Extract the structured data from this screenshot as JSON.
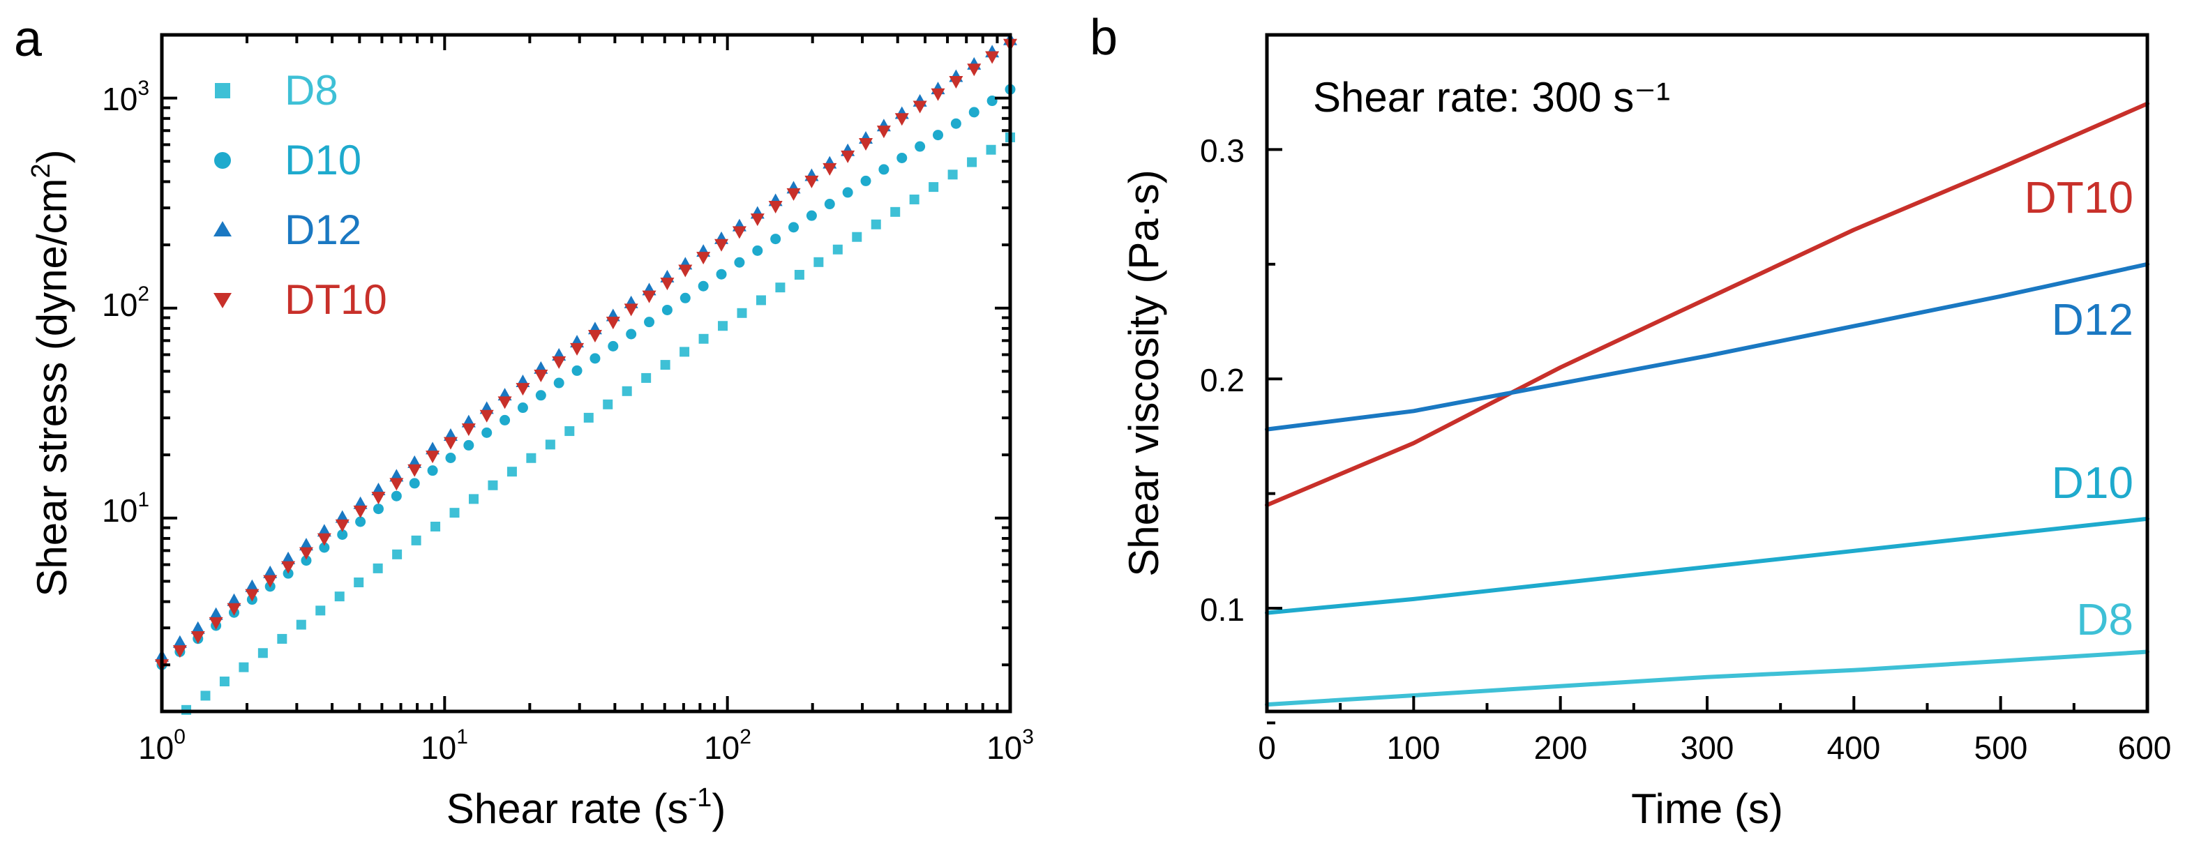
{
  "colors": {
    "D8": "#3ec0d6",
    "D10": "#1eaacd",
    "D12": "#1a78c2",
    "DT10": "#c8302a",
    "axis": "#000000"
  },
  "chart_data": [
    {
      "panel_label": "a",
      "type": "scatter",
      "xscale": "log",
      "yscale": "log",
      "xlabel": "Shear rate (s-1)",
      "ylabel": "Shear stress (dyne/cm2)",
      "xlim": [
        1,
        1000
      ],
      "ylim": [
        1.2,
        2000
      ],
      "x_ticks": [
        "10^0",
        "10^1",
        "10^2",
        "10^3"
      ],
      "y_ticks": [
        "10^1",
        "10^2",
        "10^3"
      ],
      "legend_position": "top-left",
      "grid": false,
      "series": [
        {
          "name": "D8",
          "marker": "square",
          "color_key": "D8",
          "x_range": [
            1.22,
            1000
          ],
          "y_at_start": 1.22,
          "y_at_end": 650,
          "points": 44
        },
        {
          "name": "D10",
          "marker": "circle",
          "color_key": "D10",
          "x_range": [
            1.0,
            1000
          ],
          "y_at_start": 2.0,
          "y_at_end": 1100,
          "points": 48
        },
        {
          "name": "D12",
          "marker": "triangle-up",
          "color_key": "D12",
          "x_range": [
            1.0,
            1000
          ],
          "y_at_start": 2.2,
          "y_at_end": 1900,
          "points": 48
        },
        {
          "name": "DT10",
          "marker": "triangle-down",
          "color_key": "DT10",
          "x_range": [
            1.0,
            1000
          ],
          "y_at_start": 2.0,
          "y_at_end": 1800,
          "points": 48
        }
      ]
    },
    {
      "panel_label": "b",
      "type": "line",
      "xlabel": "Time (s)",
      "ylabel": "Shear viscosity (Pa·s)",
      "xlim": [
        0,
        600
      ],
      "ylim": [
        0.055,
        0.35
      ],
      "x_ticks": [
        0,
        100,
        200,
        300,
        400,
        500,
        600
      ],
      "y_ticks": [
        "0.1",
        "0.2",
        "0.3"
      ],
      "annotation": "Shear rate: 300 s⁻¹",
      "grid": false,
      "series": [
        {
          "name": "DT10",
          "color_key": "DT10",
          "label": "DT10",
          "x": [
            0,
            100,
            200,
            300,
            400,
            500,
            600
          ],
          "y": [
            0.145,
            0.172,
            0.205,
            0.235,
            0.265,
            0.292,
            0.32
          ]
        },
        {
          "name": "D12",
          "color_key": "D12",
          "label": "D12",
          "x": [
            0,
            100,
            200,
            300,
            400,
            500,
            600
          ],
          "y": [
            0.178,
            0.186,
            0.198,
            0.21,
            0.223,
            0.236,
            0.25
          ]
        },
        {
          "name": "D10",
          "color_key": "D10",
          "label": "D10",
          "x": [
            0,
            100,
            200,
            300,
            400,
            500,
            600
          ],
          "y": [
            0.098,
            0.104,
            0.111,
            0.118,
            0.125,
            0.132,
            0.139
          ]
        },
        {
          "name": "D8",
          "color_key": "D8",
          "label": "D8",
          "x": [
            0,
            100,
            200,
            300,
            400,
            500,
            600
          ],
          "y": [
            0.058,
            0.062,
            0.066,
            0.07,
            0.073,
            0.077,
            0.081
          ]
        }
      ]
    }
  ]
}
